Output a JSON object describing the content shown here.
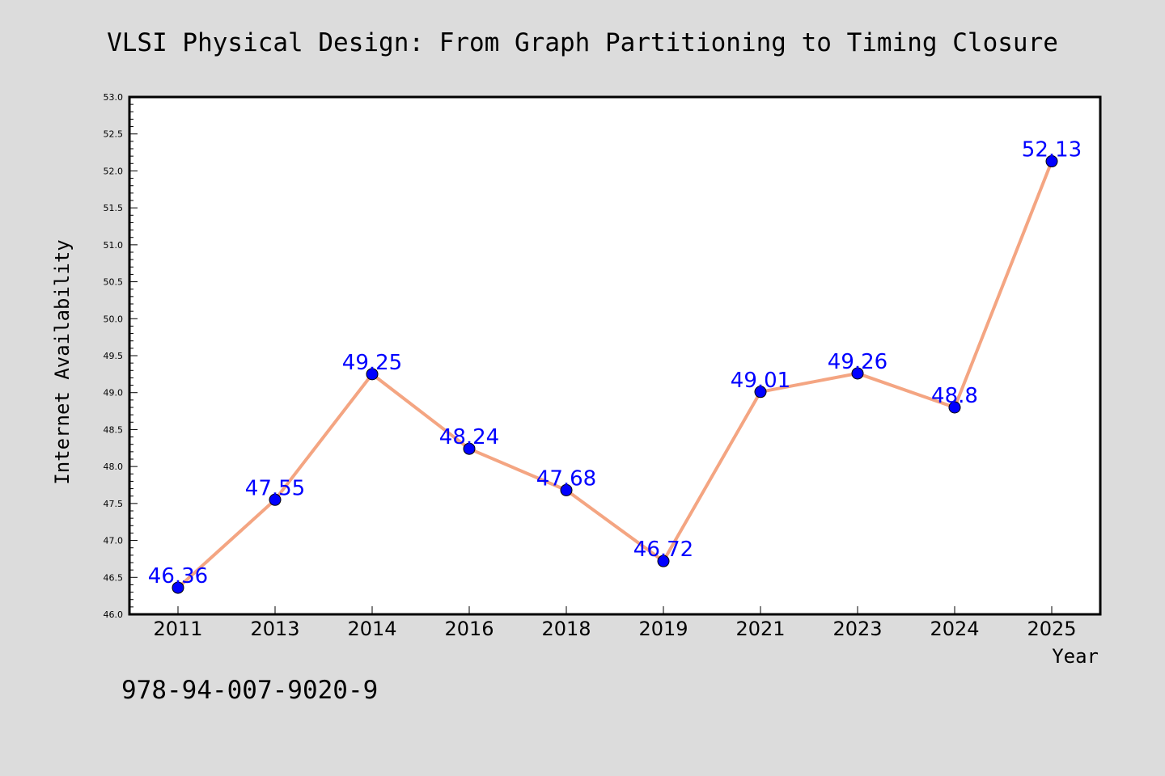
{
  "chart_data": {
    "type": "line",
    "title": "VLSI Physical Design: From Graph Partitioning to Timing Closure",
    "xlabel": "Year",
    "ylabel": "Internet Availability",
    "categories": [
      "2011",
      "2013",
      "2014",
      "2016",
      "2018",
      "2019",
      "2021",
      "2023",
      "2024",
      "2025"
    ],
    "series": [
      {
        "values": [
          46.36,
          47.55,
          49.25,
          48.24,
          47.68,
          46.72,
          49.01,
          49.26,
          48.8,
          52.13
        ],
        "labels": [
          "46.36",
          "47.55",
          "49.25",
          "48.24",
          "47.68",
          "46.72",
          "49.01",
          "49.26",
          "48.8",
          "52.13"
        ]
      }
    ],
    "ylim": [
      46.0,
      53.0
    ],
    "yticks": [
      "46.0",
      "46.5",
      "47.0",
      "47.5",
      "48.0",
      "48.5",
      "49.0",
      "49.5",
      "50.0",
      "50.5",
      "51.0",
      "51.5",
      "52.0",
      "52.5",
      "53.0"
    ],
    "grid": false,
    "legend": "none",
    "colors": {
      "line": "#f4a582",
      "marker": "#0000ff",
      "label": "#0000ff",
      "background": "#dcdcdc",
      "plot_background": "#ffffff"
    }
  },
  "footer_text": "978-94-007-9020-9"
}
